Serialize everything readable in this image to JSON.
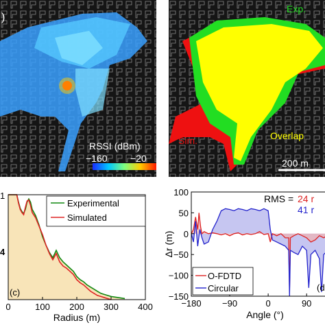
{
  "panel_a": {
    "label": ")",
    "colorbar_title": "RSSI (dBm)",
    "colorbar_min": "−160",
    "colorbar_max": "−20",
    "colors": {
      "background": "#111111",
      "buildings": "#9a9a9a"
    }
  },
  "panel_b": {
    "label_exp": "Exp.",
    "label_sim": "Sim.",
    "label_overlap": "Overlap",
    "scalebar": "200 m",
    "colors": {
      "exp": "#22dd22",
      "sim": "#ee1111",
      "overlap": "#ffff00"
    }
  },
  "chart_data": [
    {
      "type": "area",
      "panel_letter": "(c)",
      "xlabel": "Radius (m)",
      "ylabel": "",
      "xlim": [
        0,
        400
      ],
      "xticks": [
        "0",
        "100",
        "200",
        "300",
        "400"
      ],
      "yticks": [
        "1",
        "4"
      ],
      "series": [
        {
          "name": "Experimental",
          "color": "#118811",
          "x": [
            0,
            25,
            30,
            35,
            40,
            45,
            50,
            55,
            60,
            65,
            70,
            80,
            90,
            100,
            110,
            120,
            130,
            140,
            150,
            160,
            170,
            180,
            190,
            200,
            210,
            220,
            230,
            240,
            250,
            260,
            270,
            280,
            290,
            300,
            310,
            320,
            330,
            340
          ],
          "y": [
            1.0,
            1.0,
            0.93,
            0.87,
            0.84,
            0.82,
            0.86,
            0.93,
            0.96,
            0.93,
            0.86,
            0.8,
            0.71,
            0.6,
            0.52,
            0.45,
            0.4,
            0.47,
            0.4,
            0.36,
            0.33,
            0.3,
            0.27,
            0.22,
            0.19,
            0.17,
            0.14,
            0.12,
            0.1,
            0.08,
            0.06,
            0.05,
            0.04,
            0.03,
            0.025,
            0.02,
            0.015,
            0.01
          ]
        },
        {
          "name": "Simulated",
          "color": "#dd2222",
          "x": [
            0,
            25,
            30,
            35,
            40,
            45,
            50,
            55,
            60,
            65,
            70,
            80,
            90,
            100,
            110,
            120,
            130,
            140,
            150,
            160,
            170,
            180,
            190,
            200,
            210,
            220,
            230,
            240,
            250,
            260,
            270,
            280,
            290,
            300
          ],
          "y": [
            1.0,
            1.0,
            0.92,
            0.86,
            0.83,
            0.81,
            0.88,
            0.94,
            0.95,
            0.9,
            0.83,
            0.78,
            0.7,
            0.62,
            0.52,
            0.44,
            0.38,
            0.44,
            0.36,
            0.32,
            0.3,
            0.27,
            0.24,
            0.19,
            0.16,
            0.14,
            0.11,
            0.08,
            0.06,
            0.04,
            0.03,
            0.02,
            0.01,
            0.0
          ]
        }
      ]
    },
    {
      "type": "line",
      "panel_letter": "(d",
      "xlabel": "Angle (°)",
      "ylabel": "Δr (m)",
      "xlim": [
        -180,
        180
      ],
      "ylim": [
        -150,
        100
      ],
      "xticks": [
        "−180",
        "−90",
        "0",
        "90",
        "1"
      ],
      "yticks": [
        "100",
        "50",
        "0",
        "−50",
        "−100",
        "−150"
      ],
      "rms_label": "RMS =",
      "rms_values": [
        {
          "text": "24 r",
          "color": "#dd2222"
        },
        {
          "text": "41 r",
          "color": "#2222cc"
        }
      ],
      "series": [
        {
          "name": "O-FDTD",
          "color": "#dd2222",
          "x": [
            -180,
            -175,
            -170,
            -165,
            -162,
            -158,
            -155,
            -150,
            -140,
            -130,
            -120,
            -110,
            -100,
            -90,
            -80,
            -70,
            -60,
            -50,
            -40,
            -30,
            -20,
            -10,
            0,
            5,
            10,
            20,
            30,
            40,
            48,
            50,
            52,
            60,
            70,
            80,
            90,
            100,
            110,
            120,
            130,
            140,
            150,
            160,
            170,
            180
          ],
          "y": [
            0,
            10,
            40,
            10,
            50,
            15,
            0,
            5,
            0,
            2,
            0,
            -3,
            0,
            -5,
            0,
            2,
            -3,
            0,
            -2,
            0,
            5,
            -2,
            0,
            -20,
            0,
            -5,
            0,
            -10,
            -10,
            -140,
            -10,
            -5,
            0,
            -5,
            -10,
            -20,
            -15,
            -5,
            -10,
            -3,
            -5,
            0,
            5,
            0
          ]
        },
        {
          "name": "Circular",
          "color": "#2222cc",
          "x": [
            -180,
            -175,
            -170,
            -165,
            -160,
            -155,
            -150,
            -140,
            -130,
            -120,
            -110,
            -100,
            -90,
            -80,
            -70,
            -60,
            -50,
            -40,
            -30,
            -20,
            -10,
            0,
            5,
            10,
            20,
            30,
            40,
            48,
            50,
            52,
            60,
            70,
            80,
            90,
            95,
            100,
            110,
            120,
            125,
            130,
            140,
            150,
            160,
            170,
            180
          ],
          "y": [
            0,
            -20,
            30,
            -30,
            10,
            -10,
            -25,
            -20,
            10,
            30,
            55,
            60,
            58,
            55,
            60,
            58,
            55,
            60,
            58,
            55,
            60,
            55,
            10,
            -15,
            -20,
            -25,
            -30,
            -40,
            -150,
            -40,
            -45,
            -50,
            -30,
            -40,
            -130,
            -50,
            -40,
            -60,
            -140,
            -50,
            -40,
            -30,
            -20,
            -10,
            0
          ]
        }
      ]
    }
  ]
}
